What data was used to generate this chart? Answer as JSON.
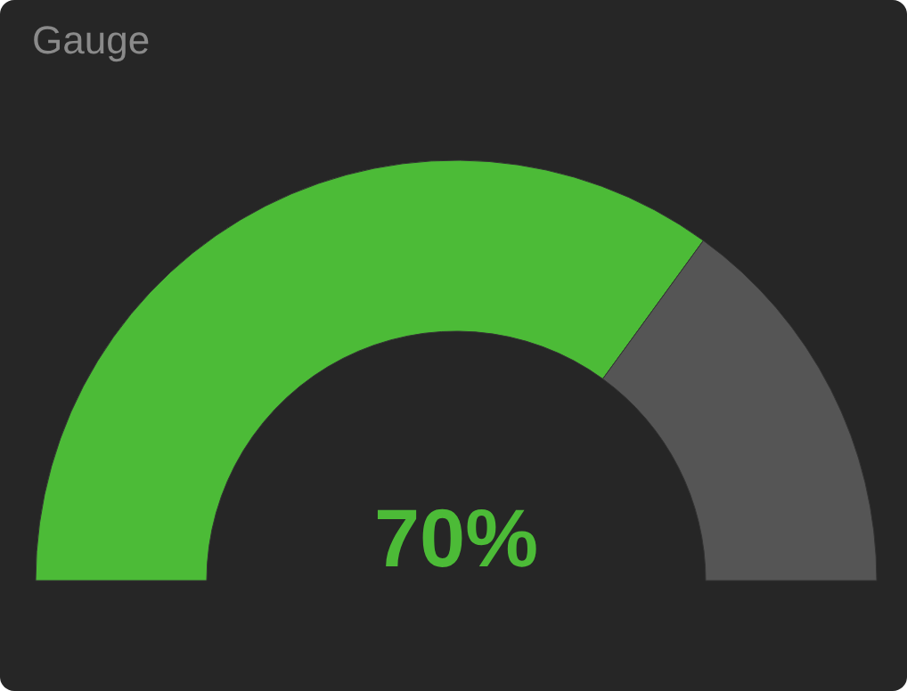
{
  "chart_data": {
    "type": "donut",
    "title": "Gauge",
    "categories": [
      null,
      null
    ],
    "values": [
      70,
      30
    ],
    "colors": [
      "#4cbb37",
      "#555555"
    ],
    "value_labels": [
      "70%",
      null
    ]
  }
}
